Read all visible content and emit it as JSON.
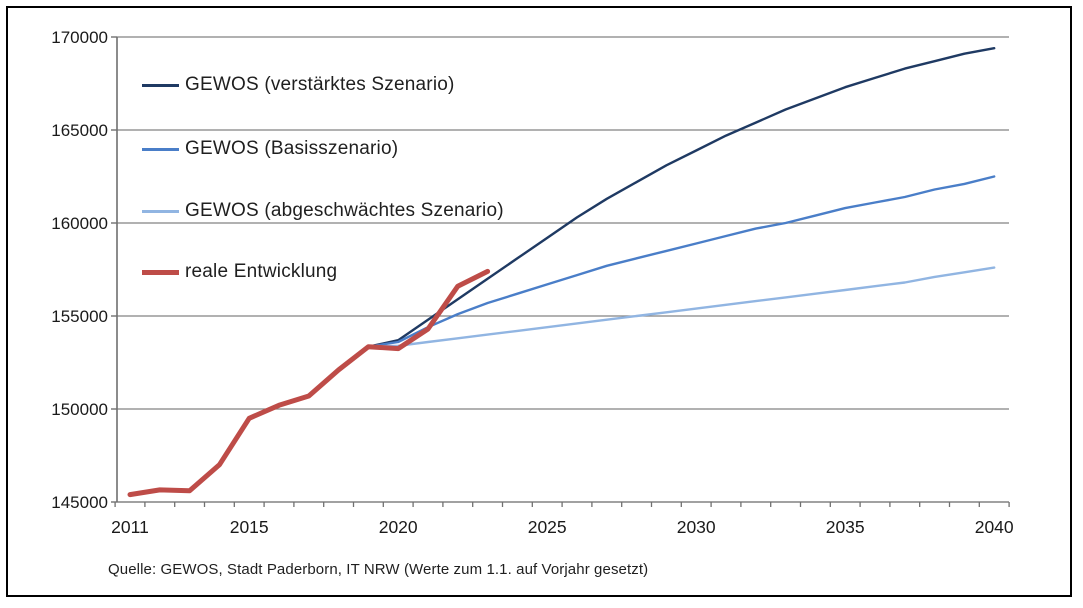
{
  "frame": {
    "background": "#ffffff",
    "border_color": "#000000"
  },
  "legend": {
    "position": "inside-top-left",
    "items": [
      {
        "label": "GEWOS (verstärktes Szenario)",
        "color": "#1f3a63",
        "thickness": 3
      },
      {
        "label": "GEWOS (Basisszenario)",
        "color": "#4a7ec8",
        "thickness": 3
      },
      {
        "label": "GEWOS (abgeschwächtes Szenario)",
        "color": "#91b5e2",
        "thickness": 3
      },
      {
        "label": "reale Entwicklung",
        "color": "#be4c48",
        "thickness": 5
      }
    ]
  },
  "source_note": "Quelle: GEWOS, Stadt Paderborn, IT NRW (Werte zum 1.1. auf Vorjahr gesetzt)",
  "chart_data": {
    "type": "line",
    "title": "",
    "xlabel": "",
    "ylabel": "",
    "grid": true,
    "grid_color": "#828282",
    "axis_color": "#707070",
    "ylim": [
      145000,
      170000
    ],
    "y_tick_step": 5000,
    "y_tick_labels": [
      "145000",
      "150000",
      "155000",
      "160000",
      "165000",
      "170000"
    ],
    "xlim": [
      2011,
      2040
    ],
    "x_tick_labels": [
      "2011",
      "2015",
      "2020",
      "2025",
      "2030",
      "2035",
      "2040"
    ],
    "x_labeled_years": [
      2011,
      2015,
      2020,
      2025,
      2030,
      2035,
      2040
    ],
    "legend_position": "inside-top-left",
    "series": [
      {
        "name": "GEWOS (verstärktes Szenario)",
        "color": "#1f3a63",
        "width": 2.4,
        "x": [
          2019,
          2020,
          2021,
          2022,
          2023,
          2024,
          2025,
          2026,
          2027,
          2028,
          2029,
          2030,
          2031,
          2032,
          2033,
          2034,
          2035,
          2036,
          2037,
          2038,
          2039,
          2040
        ],
        "values": [
          153350,
          153700,
          154800,
          155900,
          157000,
          158100,
          159200,
          160300,
          161300,
          162200,
          163100,
          163900,
          164700,
          165400,
          166100,
          166700,
          167300,
          167800,
          168300,
          168700,
          169100,
          169400
        ]
      },
      {
        "name": "GEWOS (Basisszenario)",
        "color": "#4a7ec8",
        "width": 2.4,
        "x": [
          2019,
          2020,
          2021,
          2022,
          2023,
          2024,
          2025,
          2026,
          2027,
          2028,
          2029,
          2030,
          2031,
          2032,
          2033,
          2034,
          2035,
          2036,
          2037,
          2038,
          2039,
          2040
        ],
        "values": [
          153350,
          153600,
          154400,
          155100,
          155700,
          156200,
          156700,
          157200,
          157700,
          158100,
          158500,
          158900,
          159300,
          159700,
          160000,
          160400,
          160800,
          161100,
          161400,
          161800,
          162100,
          162500
        ]
      },
      {
        "name": "GEWOS (abgeschwächtes Szenario)",
        "color": "#91b5e2",
        "width": 2.4,
        "x": [
          2019,
          2020,
          2021,
          2022,
          2023,
          2024,
          2025,
          2026,
          2027,
          2028,
          2029,
          2030,
          2031,
          2032,
          2033,
          2034,
          2035,
          2036,
          2037,
          2038,
          2039,
          2040
        ],
        "values": [
          153350,
          153400,
          153600,
          153800,
          154000,
          154200,
          154400,
          154600,
          154800,
          155000,
          155200,
          155400,
          155600,
          155800,
          156000,
          156200,
          156400,
          156600,
          156800,
          157100,
          157350,
          157600
        ]
      },
      {
        "name": "reale Entwicklung",
        "color": "#be4c48",
        "width": 5,
        "x": [
          2011,
          2012,
          2013,
          2014,
          2015,
          2016,
          2017,
          2018,
          2019,
          2020,
          2021,
          2022,
          2023
        ],
        "values": [
          145400,
          145650,
          145600,
          147000,
          149500,
          150200,
          150700,
          152100,
          153350,
          153250,
          154300,
          156600,
          157400
        ]
      }
    ]
  }
}
